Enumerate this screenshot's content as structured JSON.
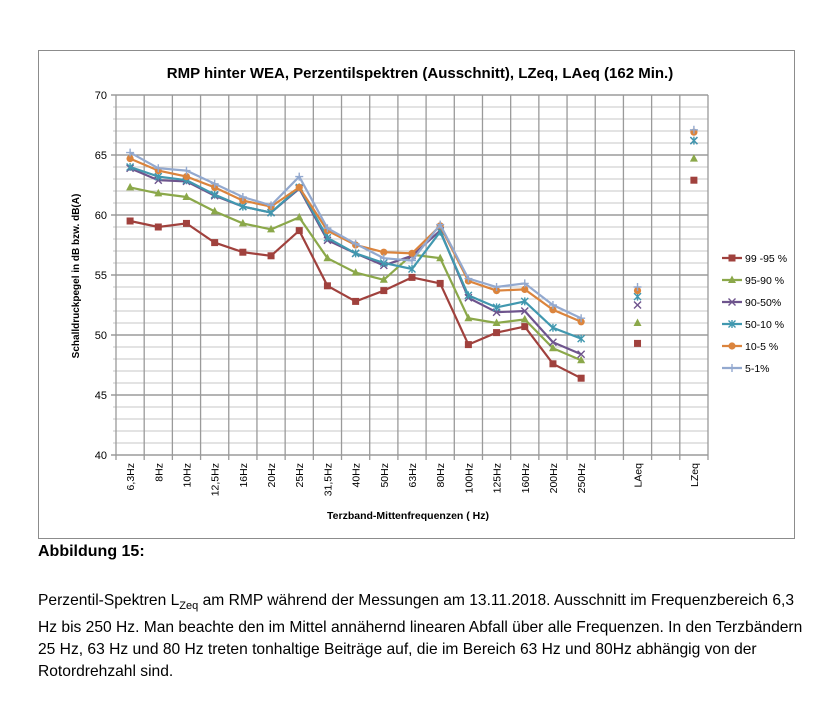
{
  "chart_data": {
    "type": "line",
    "title": "RMP hinter WEA, Perzentilspektren (Ausschnitt), LZeq, LAeq (162 Min.)",
    "xlabel": "Terzband-Mittenfrequenzen ( Hz)",
    "ylabel": "Schalldruckpegel in dB bzw. dB(A)",
    "ylim": [
      40,
      70
    ],
    "yticks": [
      40,
      45,
      50,
      55,
      60,
      65,
      70
    ],
    "grid": true,
    "legend_position": "right",
    "categories": [
      "6,3Hz",
      "8Hz",
      "10Hz",
      "12,5Hz",
      "16Hz",
      "20Hz",
      "25Hz",
      "31,5Hz",
      "40Hz",
      "50Hz",
      "63Hz",
      "80Hz",
      "100Hz",
      "125Hz",
      "160Hz",
      "200Hz",
      "250Hz",
      "",
      "LAeq",
      "",
      "LZeq"
    ],
    "series": [
      {
        "name": "99 -95 %",
        "color": "#A0413D",
        "marker": "square",
        "values": [
          59.5,
          59.0,
          59.3,
          57.7,
          56.9,
          56.6,
          58.7,
          54.1,
          52.8,
          53.7,
          54.8,
          54.3,
          49.2,
          50.2,
          50.7,
          47.6,
          46.4,
          null,
          49.3,
          null,
          62.9
        ]
      },
      {
        "name": "95-90 %",
        "color": "#8BA84A",
        "marker": "triangle",
        "values": [
          62.3,
          61.8,
          61.5,
          60.3,
          59.3,
          58.8,
          59.8,
          56.4,
          55.2,
          54.6,
          56.7,
          56.4,
          51.4,
          51.0,
          51.3,
          48.9,
          47.9,
          null,
          51.0,
          null,
          64.7
        ]
      },
      {
        "name": "90-50%",
        "color": "#6E548D",
        "marker": "x",
        "values": [
          63.9,
          62.9,
          62.8,
          61.6,
          60.7,
          60.2,
          62.2,
          57.9,
          56.8,
          55.8,
          56.6,
          58.7,
          53.1,
          51.9,
          52.0,
          49.4,
          48.4,
          null,
          52.5,
          null,
          66.2
        ]
      },
      {
        "name": "50-10 %",
        "color": "#4198AF",
        "marker": "star",
        "values": [
          64.0,
          63.2,
          62.9,
          61.7,
          60.7,
          60.2,
          62.3,
          58.1,
          56.8,
          56.0,
          55.5,
          58.6,
          53.3,
          52.3,
          52.8,
          50.6,
          49.7,
          null,
          53.2,
          null,
          66.2
        ]
      },
      {
        "name": "10-5 %",
        "color": "#DB843D",
        "marker": "circle",
        "values": [
          64.7,
          63.7,
          63.2,
          62.3,
          61.2,
          60.7,
          62.3,
          58.7,
          57.5,
          56.9,
          56.8,
          59.1,
          54.5,
          53.7,
          53.8,
          52.1,
          51.1,
          null,
          53.7,
          null,
          66.9
        ]
      },
      {
        "name": "5-1%",
        "color": "#93A9CF",
        "marker": "plus",
        "values": [
          65.2,
          63.9,
          63.7,
          62.6,
          61.5,
          60.8,
          63.2,
          58.9,
          57.6,
          56.4,
          56.2,
          59.2,
          54.7,
          54.0,
          54.3,
          52.5,
          51.4,
          null,
          54.0,
          null,
          67.1
        ]
      }
    ],
    "line_until_index": 16
  },
  "caption": {
    "title": "Abbildung 15:",
    "text_before": "Perzentil-Spektren L",
    "subscript": "Zeq",
    "text_after": " am RMP während der Messungen am 13.11.2018. Ausschnitt im Frequenzbereich 6,3 Hz bis 250 Hz. Man beachte den im Mittel annähernd linearen Abfall über alle Frequenzen. In den Terzbändern 25 Hz, 63 Hz und 80 Hz treten tonhaltige Beiträge auf, die im Bereich 63 Hz und 80Hz abhängig von der Rotordrehzahl sind."
  }
}
